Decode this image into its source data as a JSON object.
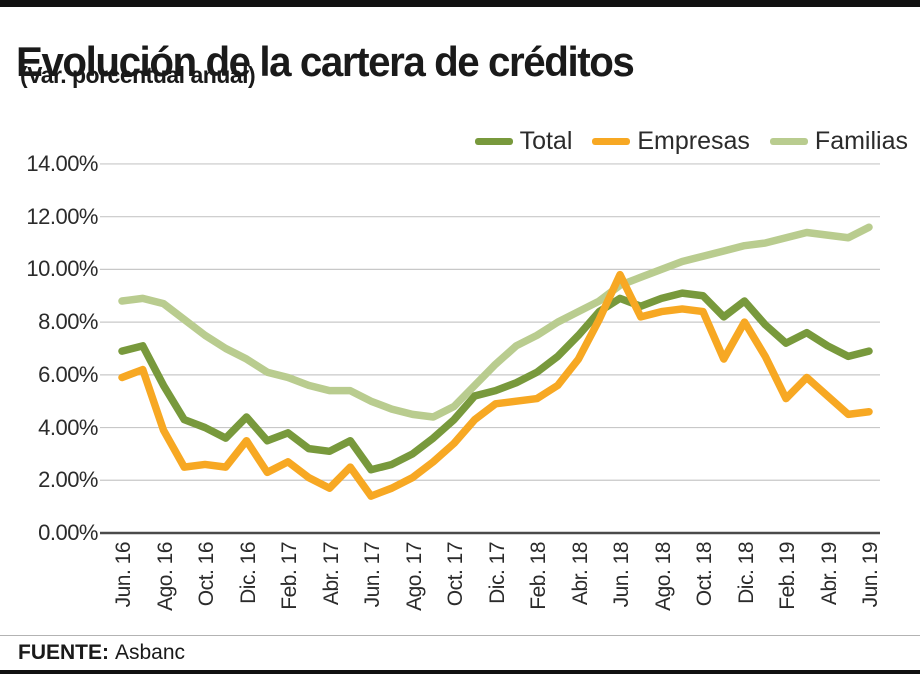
{
  "page": {
    "title": "Evolución de la cartera de créditos",
    "subtitle": "(Var. porcentual anual)",
    "source_label": "FUENTE:",
    "source_value": "Asbanc"
  },
  "colors": {
    "total": "#78993c",
    "empresas": "#f7a823",
    "familias": "#b9cc8f",
    "grid": "#c8c8c8",
    "zero_axis": "#4a4a4a"
  },
  "legend": [
    {
      "label": "Total",
      "color": "#78993c"
    },
    {
      "label": "Empresas",
      "color": "#f7a823"
    },
    {
      "label": "Familias",
      "color": "#b9cc8f"
    }
  ],
  "chart_data": {
    "type": "line",
    "title": "Evolución de la cartera de créditos",
    "subtitle": "(Var. porcentual anual)",
    "source": "FUENTE: Asbanc",
    "grid": true,
    "legend_position": "top-right",
    "ylim": [
      0,
      14
    ],
    "y_ticks": [
      "14.00%",
      "12.00%",
      "10.00%",
      "8.00%",
      "6.00%",
      "4.00%",
      "2.00%",
      "0.00%"
    ],
    "y_tick_values": [
      14,
      12,
      10,
      8,
      6,
      4,
      2,
      0
    ],
    "x": [
      "Jun.16",
      "Jul.16",
      "Ago.16",
      "Sep.16",
      "Oct.16",
      "Nov.16",
      "Dic.16",
      "Ene.17",
      "Feb.17",
      "Mar.17",
      "Abr.17",
      "May.17",
      "Jun.17",
      "Jul.17",
      "Ago.17",
      "Sep.17",
      "Oct.17",
      "Nov.17",
      "Dic.17",
      "Ene.18",
      "Feb.18",
      "Mar.18",
      "Abr.18",
      "May.18",
      "Jun.18",
      "Jul.18",
      "Ago.18",
      "Sep.18",
      "Oct.18",
      "Nov.18",
      "Dic.18",
      "Ene.19",
      "Feb.19",
      "Mar.19",
      "Abr.19",
      "May.19",
      "Jun.19"
    ],
    "x_tick_labels": [
      "Jun. 16",
      "Ago. 16",
      "Oct. 16",
      "Dic. 16",
      "Feb. 17",
      "Abr. 17",
      "Jun. 17",
      "Ago. 17",
      "Oct. 17",
      "Dic. 17",
      "Feb. 18",
      "Abr. 18",
      "Jun. 18",
      "Ago. 18",
      "Oct. 18",
      "Dic. 18",
      "Feb. 19",
      "Abr. 19",
      "Jun. 19"
    ],
    "x_tick_every": 2,
    "series": [
      {
        "name": "Total",
        "color": "#78993c",
        "values": [
          6.9,
          7.1,
          5.6,
          4.3,
          4.0,
          3.6,
          4.4,
          3.5,
          3.8,
          3.2,
          3.1,
          3.5,
          2.4,
          2.6,
          3.0,
          3.6,
          4.3,
          5.2,
          5.4,
          5.7,
          6.1,
          6.7,
          7.5,
          8.4,
          8.9,
          8.6,
          8.9,
          9.1,
          9.0,
          8.2,
          8.8,
          7.9,
          7.2,
          7.6,
          7.1,
          6.7,
          6.9
        ]
      },
      {
        "name": "Empresas",
        "color": "#f7a823",
        "values": [
          5.9,
          6.2,
          3.9,
          2.5,
          2.6,
          2.5,
          3.5,
          2.3,
          2.7,
          2.1,
          1.7,
          2.5,
          1.4,
          1.7,
          2.1,
          2.7,
          3.4,
          4.3,
          4.9,
          5.0,
          5.1,
          5.6,
          6.6,
          8.1,
          9.8,
          8.2,
          8.4,
          8.5,
          8.4,
          6.6,
          8.0,
          6.7,
          5.1,
          5.9,
          5.2,
          4.5,
          4.6
        ]
      },
      {
        "name": "Familias",
        "color": "#b9cc8f",
        "values": [
          8.8,
          8.9,
          8.7,
          8.1,
          7.5,
          7.0,
          6.6,
          6.1,
          5.9,
          5.6,
          5.4,
          5.4,
          5.0,
          4.7,
          4.5,
          4.4,
          4.8,
          5.6,
          6.4,
          7.1,
          7.5,
          8.0,
          8.4,
          8.8,
          9.4,
          9.7,
          10.0,
          10.3,
          10.5,
          10.7,
          10.9,
          11.0,
          11.2,
          11.4,
          11.3,
          11.2,
          11.6
        ]
      }
    ]
  }
}
